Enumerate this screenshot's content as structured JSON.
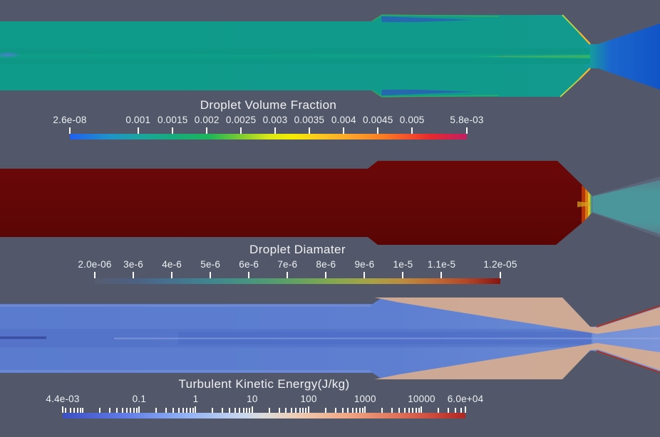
{
  "view": {
    "app_context": "cfd-render-view",
    "background_color": "#525869",
    "text_color": "#f1f1f3"
  },
  "colors": {
    "background": "#525869",
    "chamber_teal": "#0f9a8a",
    "nozzle_exit_blue": "#1156c8",
    "droplet_diameter_red": "#620707",
    "exhaust_fan_teal": "#4a979b",
    "tke_core_blue": "#5c7ed0",
    "tke_wall_salmon": "#d7ad8f",
    "tke_wall_red_line": "#a83120",
    "tick_color": "#fafafa"
  },
  "panels": [
    {
      "id": "droplet-volume-fraction",
      "title": "Droplet Volume Fraction",
      "scale": "linear",
      "range_min_label": "2.6e-08",
      "range_max_label": "5.8e-03",
      "ticks": [
        {
          "label": "2.6e-08",
          "pos": 0
        },
        {
          "label": "0.001",
          "pos": 0.172
        },
        {
          "label": "0.0015",
          "pos": 0.259
        },
        {
          "label": "0.002",
          "pos": 0.345
        },
        {
          "label": "0.0025",
          "pos": 0.431
        },
        {
          "label": "0.003",
          "pos": 0.517
        },
        {
          "label": "0.0035",
          "pos": 0.603
        },
        {
          "label": "0.004",
          "pos": 0.69
        },
        {
          "label": "0.0045",
          "pos": 0.776
        },
        {
          "label": "0.005",
          "pos": 0.862
        },
        {
          "label": "5.8e-03",
          "pos": 1
        }
      ],
      "bar_gradient": [
        [
          0,
          "#2060ef"
        ],
        [
          0.1,
          "#1f93c9"
        ],
        [
          0.18,
          "#1aa69c"
        ],
        [
          0.27,
          "#16ac79"
        ],
        [
          0.35,
          "#1cb55b"
        ],
        [
          0.43,
          "#7ccb30"
        ],
        [
          0.5,
          "#d8e815"
        ],
        [
          0.56,
          "#f4ed00"
        ],
        [
          0.63,
          "#fcc81e"
        ],
        [
          0.71,
          "#fda329"
        ],
        [
          0.79,
          "#fb7b23"
        ],
        [
          0.85,
          "#f4522a"
        ],
        [
          0.91,
          "#e8282e"
        ],
        [
          1,
          "#c11f63"
        ]
      ]
    },
    {
      "id": "droplet-diameter",
      "title": "Droplet Diamater",
      "scale": "linear",
      "range_min_label": "2.0e-06",
      "range_max_label": "1.2e-05",
      "ticks": [
        {
          "label": "2.0e-06",
          "pos": 0
        },
        {
          "label": "3e-6",
          "pos": 0.095
        },
        {
          "label": "4e-6",
          "pos": 0.19
        },
        {
          "label": "5e-6",
          "pos": 0.285
        },
        {
          "label": "6e-6",
          "pos": 0.38
        },
        {
          "label": "7e-6",
          "pos": 0.475
        },
        {
          "label": "8e-6",
          "pos": 0.57
        },
        {
          "label": "9e-6",
          "pos": 0.665
        },
        {
          "label": "1e-5",
          "pos": 0.76
        },
        {
          "label": "1.1e-5",
          "pos": 0.855
        },
        {
          "label": "1.2e-05",
          "pos": 1
        }
      ],
      "bar_gradient": [
        [
          0,
          "#555d70"
        ],
        [
          0.08,
          "#4e5e80"
        ],
        [
          0.18,
          "#46708f"
        ],
        [
          0.28,
          "#3f8590"
        ],
        [
          0.38,
          "#469680"
        ],
        [
          0.48,
          "#5da163"
        ],
        [
          0.58,
          "#83a84e"
        ],
        [
          0.68,
          "#a8a246"
        ],
        [
          0.76,
          "#bc8b3e"
        ],
        [
          0.84,
          "#c06a33"
        ],
        [
          0.92,
          "#b24527"
        ],
        [
          1,
          "#871410"
        ]
      ]
    },
    {
      "id": "turbulent-kinetic-energy",
      "title": "Turbulent Kinetic Energy(J/kg)",
      "scale": "log",
      "range_min_label": "4.4e-03",
      "range_max_label": "6.0e+04",
      "log": {
        "min": 0.0044,
        "max": 60000,
        "majors": [
          0.1,
          1,
          10,
          100,
          1000,
          10000
        ]
      },
      "ticks": [
        {
          "label": "4.4e-03",
          "pos": 0
        },
        {
          "label": "0.1",
          "pos": 0.19
        },
        {
          "label": "1",
          "pos": 0.33
        },
        {
          "label": "10",
          "pos": 0.4705
        },
        {
          "label": "100",
          "pos": 0.6107
        },
        {
          "label": "1000",
          "pos": 0.7509
        },
        {
          "label": "10000",
          "pos": 0.8911
        },
        {
          "label": "6.0e+04",
          "pos": 1
        }
      ],
      "bar_gradient": [
        [
          0,
          "#3c4fc4"
        ],
        [
          0.15,
          "#5f7ae6"
        ],
        [
          0.3,
          "#8fb0f4"
        ],
        [
          0.45,
          "#c9d6ee"
        ],
        [
          0.5,
          "#dcdcda"
        ],
        [
          0.58,
          "#eeccb4"
        ],
        [
          0.7,
          "#f0a987"
        ],
        [
          0.82,
          "#e0785e"
        ],
        [
          0.92,
          "#cc4a3c"
        ],
        [
          1,
          "#ae2722"
        ]
      ]
    }
  ],
  "chart_data": [
    {
      "type": "heatmap",
      "title": "Droplet Volume Fraction",
      "scale": "linear",
      "range": [
        2.6e-08,
        0.0058
      ],
      "colorbar_tick_values": [
        2.6e-08,
        0.001,
        0.0015,
        0.002,
        0.0025,
        0.003,
        0.0035,
        0.004,
        0.0045,
        0.005,
        0.0058
      ],
      "colorbar_tick_labels": [
        "2.6e-08",
        "0.001",
        "0.0015",
        "0.002",
        "0.0025",
        "0.003",
        "0.0035",
        "0.004",
        "0.0045",
        "0.005",
        "5.8e-03"
      ],
      "colormap": "rainbow (blue-teal-green-yellow-orange-red-magenta)",
      "field_summary": "Rocket chamber contour: chamber/inlet uniform teal-green (~0.002), thin yellow-orange layers on converging nozzle walls, value drops to blue (~0.0005) in diverging nozzle exit"
    },
    {
      "type": "heatmap",
      "title": "Droplet Diamater",
      "scale": "linear",
      "range": [
        2e-06,
        1.2e-05
      ],
      "colorbar_tick_values": [
        2e-06,
        3e-06,
        4e-06,
        5e-06,
        6e-06,
        7e-06,
        8e-06,
        9e-06,
        1e-05,
        1.1e-05,
        1.2e-05
      ],
      "colorbar_tick_labels": [
        "2.0e-06",
        "3e-6",
        "4e-6",
        "5e-6",
        "6e-6",
        "7e-6",
        "8e-6",
        "9e-6",
        "1e-5",
        "1.1e-5",
        "1.2e-05"
      ],
      "colormap": "muted dark rainbow (gray-blue-teal-green-olive-orange-dark red)",
      "field_summary": "Chamber uniformly dark red (max diameter ~1.2e-5), sharp jagged transition through orange/yellow/green at nozzle throat, teal fan (~5e-6) in diverging exhaust"
    },
    {
      "type": "heatmap",
      "title": "Turbulent Kinetic Energy(J/kg)",
      "scale": "log",
      "range": [
        0.0044,
        60000.0
      ],
      "colorbar_tick_values": [
        0.0044,
        0.1,
        1,
        10,
        100,
        1000,
        10000,
        60000.0
      ],
      "colorbar_tick_labels": [
        "4.4e-03",
        "0.1",
        "1",
        "10",
        "100",
        "1000",
        "10000",
        "6.0e+04"
      ],
      "colormap": "cool-to-warm diverging (blue-white-red)",
      "field_summary": "Blue core flow (low TKE) with salmon high-TKE shear layers along walls after step expansion, thin dark-red maxima lines along diverging nozzle walls"
    }
  ]
}
